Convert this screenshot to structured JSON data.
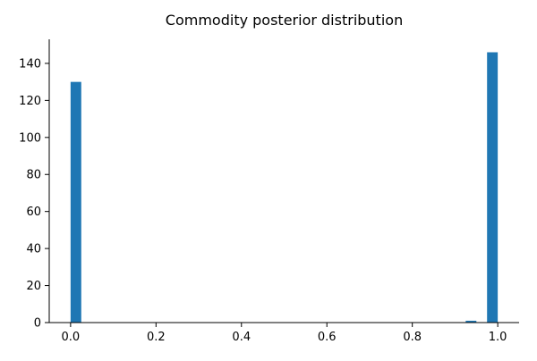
{
  "chart_data": {
    "type": "bar",
    "title": "Commodity posterior distribution",
    "xlabel": "",
    "ylabel": "",
    "bins": {
      "start": 0.0,
      "width": 0.025,
      "counts": [
        130,
        0,
        0,
        0,
        0,
        0,
        0,
        0,
        0,
        0,
        0,
        0,
        0,
        0,
        0,
        0,
        0,
        0,
        0,
        0,
        0,
        0,
        0,
        0,
        0,
        0,
        0,
        0,
        0,
        0,
        0,
        0,
        0,
        0,
        0,
        0,
        0,
        1,
        0,
        146
      ]
    },
    "xlim": [
      -0.05,
      1.05
    ],
    "ylim": [
      0,
      153
    ],
    "xticks": [
      0.0,
      0.2,
      0.4,
      0.6,
      0.8,
      1.0
    ],
    "xtick_labels": [
      "0.0",
      "0.2",
      "0.4",
      "0.6",
      "0.8",
      "1.0"
    ],
    "yticks": [
      0,
      20,
      40,
      60,
      80,
      100,
      120,
      140
    ],
    "ytick_labels": [
      "0",
      "20",
      "40",
      "60",
      "80",
      "100",
      "120",
      "140"
    ],
    "bar_color": "#1f77b4",
    "grid": false
  }
}
